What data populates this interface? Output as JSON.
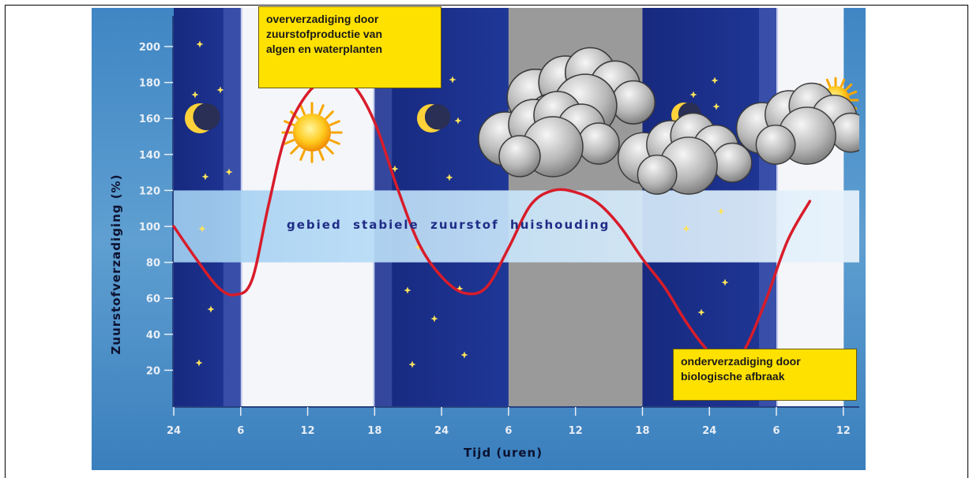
{
  "chart_data": {
    "type": "line",
    "title": "",
    "ylabel": "Zuurstofverzadiging (%)",
    "xlabel": "Tijd (uren)",
    "ylim": [
      0,
      220
    ],
    "y_ticks": [
      "20",
      "40",
      "60",
      "80",
      "100",
      "120",
      "140",
      "160",
      "180",
      "200"
    ],
    "x_ticks": [
      "24",
      "6",
      "12",
      "18",
      "24",
      "6",
      "12",
      "18",
      "24",
      "6",
      "12"
    ],
    "x_hours": [
      0,
      6,
      12,
      18,
      24,
      30,
      36,
      42,
      48,
      54,
      60
    ],
    "stable_band": {
      "label": "gebied  stabiele  zuurstof  huishouding",
      "from": 80,
      "to": 120
    },
    "series": [
      {
        "values": [
          [
            0,
            100
          ],
          [
            2,
            82
          ],
          [
            4,
            66
          ],
          [
            5.5,
            62
          ],
          [
            7,
            70
          ],
          [
            8.5,
            112
          ],
          [
            10,
            150
          ],
          [
            12,
            174
          ],
          [
            14,
            182
          ],
          [
            16,
            179
          ],
          [
            18,
            158
          ],
          [
            20,
            122
          ],
          [
            22,
            90
          ],
          [
            24,
            72
          ],
          [
            26,
            63
          ],
          [
            28,
            66
          ],
          [
            30,
            88
          ],
          [
            32,
            112
          ],
          [
            34,
            120
          ],
          [
            36,
            119
          ],
          [
            38,
            113
          ],
          [
            40,
            100
          ],
          [
            42,
            82
          ],
          [
            44,
            66
          ],
          [
            46,
            46
          ],
          [
            48,
            30
          ],
          [
            49.5,
            26
          ],
          [
            51,
            30
          ],
          [
            53,
            58
          ],
          [
            55,
            92
          ],
          [
            57,
            114
          ]
        ]
      }
    ],
    "periods": [
      {
        "from": 0,
        "to": 6,
        "kind": "night"
      },
      {
        "from": 6,
        "to": 18,
        "kind": "day"
      },
      {
        "from": 18,
        "to": 30,
        "kind": "night"
      },
      {
        "from": 30,
        "to": 42,
        "kind": "cloudy"
      },
      {
        "from": 42,
        "to": 54,
        "kind": "night"
      },
      {
        "from": 54,
        "to": 60,
        "kind": "day"
      }
    ],
    "annotations": [
      {
        "lines": [
          "oververzadiging door",
          "zuurstofproductie van",
          "algen en waterplanten"
        ]
      },
      {
        "lines": [
          "onderverzadiging door",
          "biologische afbraak"
        ]
      }
    ],
    "colors": {
      "curve": "#d81c2a",
      "night": "#1a2f88",
      "day": "#f4f6fa",
      "cloudy": "#9a9a9a",
      "band": "#a9d3f2",
      "frame": "#4e8fc7",
      "callout": "#ffe100"
    },
    "icons": [
      "moon-icon",
      "sun-icon",
      "cloud-icon",
      "star-icon"
    ]
  }
}
